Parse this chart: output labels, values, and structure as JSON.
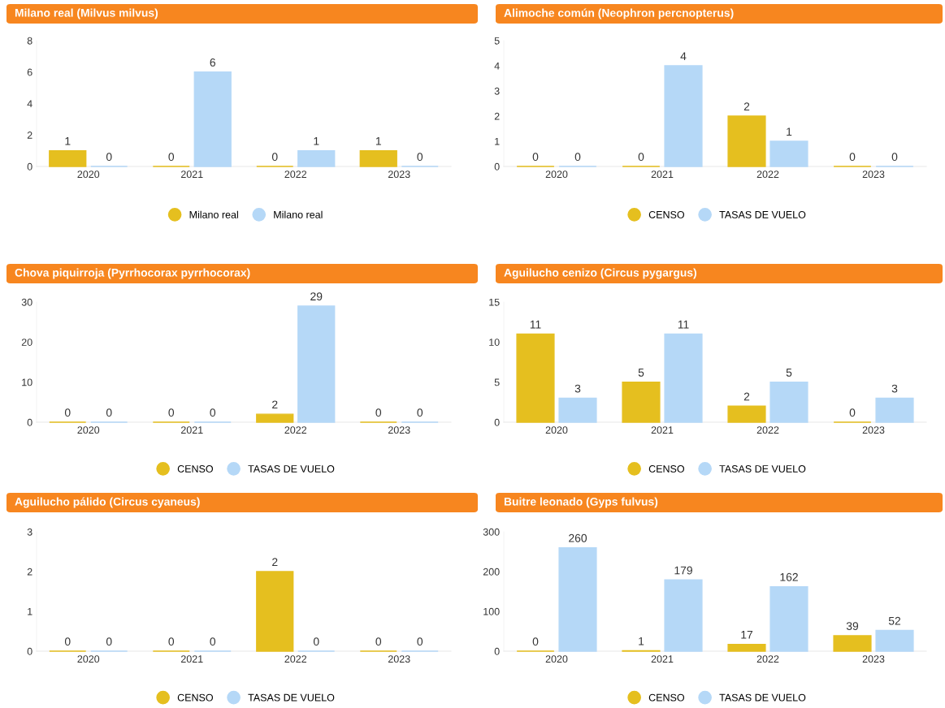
{
  "chart_data": [
    {
      "type": "bar",
      "title": "Milano real (Milvus milvus)",
      "categories": [
        "2020",
        "2021",
        "2022",
        "2023"
      ],
      "ylim": [
        0,
        8
      ],
      "yticks": [
        0,
        2,
        4,
        6,
        8
      ],
      "data_labels": true,
      "legend": "bottom",
      "grid": false,
      "series": [
        {
          "name": "Milano real",
          "color": "#e5bf1f",
          "values": [
            1,
            0,
            0,
            1
          ]
        },
        {
          "name": "Milano real",
          "color": "#b5d8f7",
          "values": [
            0,
            6,
            1,
            0
          ]
        }
      ]
    },
    {
      "type": "bar",
      "title": "Alimoche común (Neophron percnopterus)",
      "categories": [
        "2020",
        "2021",
        "2022",
        "2023"
      ],
      "ylim": [
        0,
        5
      ],
      "yticks": [
        0,
        1,
        2,
        3,
        4,
        5
      ],
      "data_labels": true,
      "legend": "bottom",
      "grid": false,
      "series": [
        {
          "name": "CENSO",
          "color": "#e5bf1f",
          "values": [
            0,
            0,
            2,
            0
          ]
        },
        {
          "name": "TASAS DE VUELO",
          "color": "#b5d8f7",
          "values": [
            0,
            4,
            1,
            0
          ]
        }
      ]
    },
    {
      "type": "bar",
      "title": "Chova piquirroja (Pyrrhocorax pyrrhocorax)",
      "categories": [
        "2020",
        "2021",
        "2022",
        "2023"
      ],
      "ylim": [
        0,
        30
      ],
      "yticks": [
        0,
        10,
        20,
        30
      ],
      "data_labels": true,
      "legend": "bottom",
      "grid": false,
      "series": [
        {
          "name": "CENSO",
          "color": "#e5bf1f",
          "values": [
            0,
            0,
            2,
            0
          ]
        },
        {
          "name": "TASAS DE VUELO",
          "color": "#b5d8f7",
          "values": [
            0,
            0,
            29,
            0
          ]
        }
      ]
    },
    {
      "type": "bar",
      "title": "Aguilucho cenizo (Circus pygargus)",
      "categories": [
        "2020",
        "2021",
        "2022",
        "2023"
      ],
      "ylim": [
        0,
        15
      ],
      "yticks": [
        0,
        5,
        10,
        15
      ],
      "data_labels": true,
      "legend": "bottom",
      "grid": false,
      "series": [
        {
          "name": "CENSO",
          "color": "#e5bf1f",
          "values": [
            11,
            5,
            2,
            0
          ]
        },
        {
          "name": "TASAS DE VUELO",
          "color": "#b5d8f7",
          "values": [
            3,
            11,
            5,
            3
          ]
        }
      ]
    },
    {
      "type": "bar",
      "title": "Aguilucho pálido (Circus cyaneus)",
      "categories": [
        "2020",
        "2021",
        "2022",
        "2023"
      ],
      "ylim": [
        0,
        3
      ],
      "yticks": [
        0,
        1,
        2,
        3
      ],
      "data_labels": true,
      "legend": "bottom",
      "grid": false,
      "series": [
        {
          "name": "CENSO",
          "color": "#e5bf1f",
          "values": [
            0,
            0,
            2,
            0
          ]
        },
        {
          "name": "TASAS DE VUELO",
          "color": "#b5d8f7",
          "values": [
            0,
            0,
            0,
            0
          ]
        }
      ]
    },
    {
      "type": "bar",
      "title": "Buitre leonado (Gyps fulvus)",
      "categories": [
        "2020",
        "2021",
        "2022",
        "2023"
      ],
      "ylim": [
        0,
        300
      ],
      "yticks": [
        0,
        100,
        200,
        300
      ],
      "data_labels": true,
      "legend": "bottom",
      "grid": false,
      "series": [
        {
          "name": "CENSO",
          "color": "#e5bf1f",
          "values": [
            0,
            1,
            17,
            39
          ]
        },
        {
          "name": "TASAS DE VUELO",
          "color": "#b5d8f7",
          "values": [
            260,
            179,
            162,
            52
          ]
        }
      ]
    }
  ]
}
